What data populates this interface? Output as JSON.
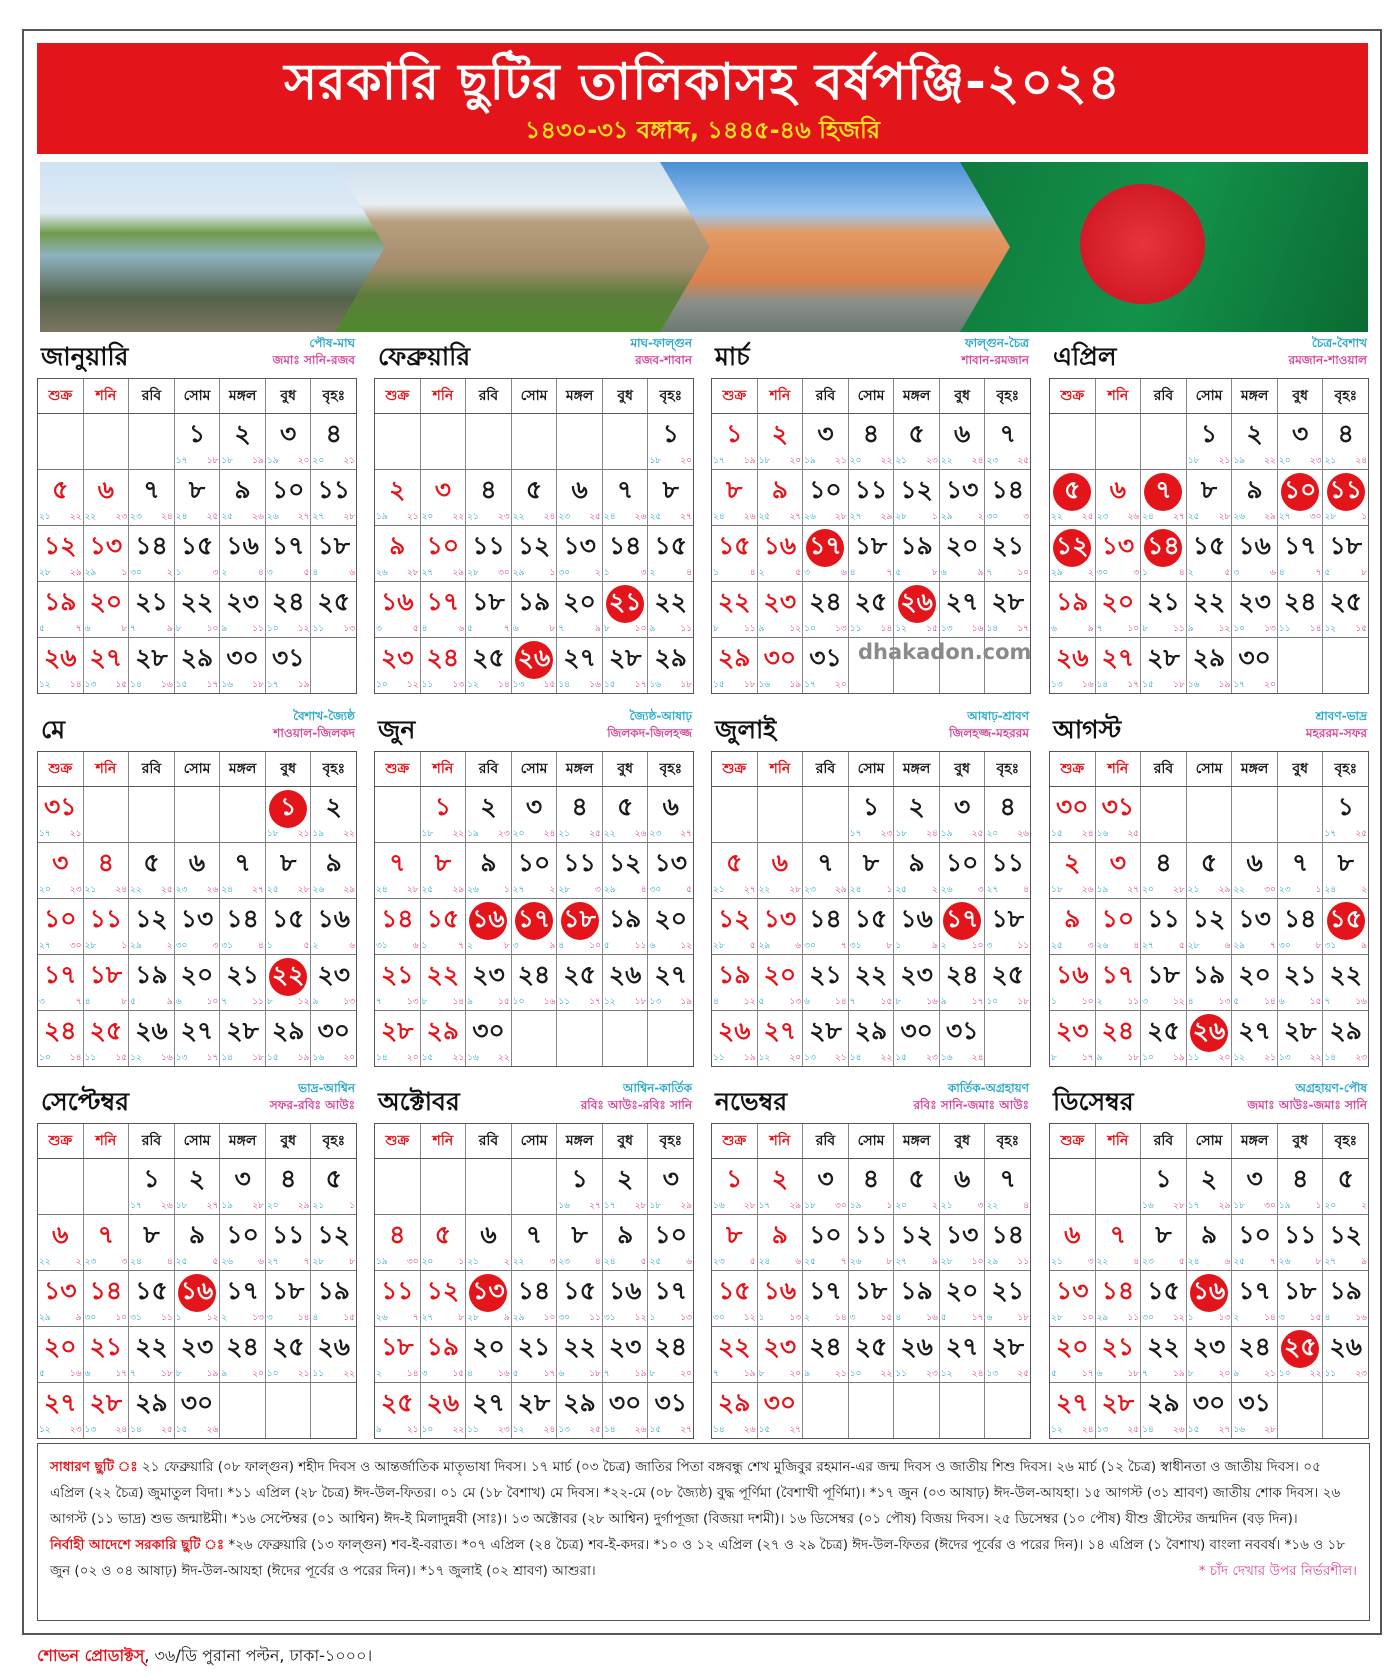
{
  "header": {
    "title": "সরকারি ছুটির তালিকাসহ বর্ষপঞ্জি-২০২৪",
    "subtitle": "১৪৩০-৩১ বঙ্গাব্দ, ১৪৪৫-৪৬ হিজরি"
  },
  "photos": [
    "river-boats-photo",
    "parliament-building-photo",
    "lalbagh-fort-photo",
    "bangladesh-flag-photo"
  ],
  "colors": {
    "accent_red": "#e3151b",
    "bengali_date": "#2aa9c9",
    "hijri_date": "#d5489a",
    "subtitle_yellow": "#ffe21a"
  },
  "calendar": {
    "year": 2024,
    "weekdays": [
      "শুক্র",
      "শনি",
      "রবি",
      "সোম",
      "মঙ্গল",
      "বুধ",
      "বৃহঃ"
    ],
    "months": [
      {
        "name": "জানুয়ারি",
        "bengali_months": "পৌষ-মাঘ",
        "hijri_months": "জমাঃ সানি-রজব",
        "holidays": [],
        "bn": [
          17,
          18,
          19,
          20,
          21,
          22,
          23,
          24,
          25,
          26,
          27,
          28,
          29,
          30,
          1,
          2,
          3,
          4,
          5,
          6,
          7,
          8,
          9,
          10,
          11,
          12,
          13,
          14,
          15,
          16,
          17
        ],
        "hj": [
          18,
          19,
          20,
          21,
          22,
          23,
          24,
          25,
          26,
          27,
          28,
          29,
          1,
          2,
          3,
          4,
          5,
          6,
          7,
          8,
          9,
          10,
          11,
          12,
          13,
          14,
          15,
          16,
          17,
          18,
          19
        ]
      },
      {
        "name": "ফেব্রুয়ারি",
        "bengali_months": "মাঘ-ফাল্গুন",
        "hijri_months": "রজব-শাবান",
        "holidays": [
          21,
          26
        ],
        "bn": [
          18,
          19,
          20,
          21,
          22,
          23,
          24,
          25,
          26,
          27,
          28,
          29,
          30,
          1,
          2,
          3,
          4,
          5,
          6,
          7,
          8,
          9,
          10,
          11,
          12,
          13,
          14,
          15,
          16
        ],
        "hj": [
          20,
          21,
          22,
          23,
          24,
          25,
          26,
          27,
          28,
          29,
          30,
          1,
          2,
          3,
          4,
          5,
          6,
          7,
          8,
          9,
          10,
          11,
          12,
          13,
          14,
          15,
          16,
          17,
          18
        ]
      },
      {
        "name": "মার্চ",
        "bengali_months": "ফাল্গুন-চৈত্র",
        "hijri_months": "শাবান-রমজান",
        "holidays": [
          17,
          26
        ],
        "bn": [
          17,
          18,
          19,
          20,
          21,
          22,
          23,
          24,
          25,
          26,
          27,
          28,
          29,
          30,
          1,
          2,
          3,
          4,
          5,
          6,
          7,
          8,
          9,
          10,
          11,
          12,
          13,
          14,
          15,
          16,
          17
        ],
        "hj": [
          19,
          20,
          21,
          22,
          23,
          24,
          25,
          26,
          27,
          28,
          29,
          1,
          2,
          3,
          4,
          5,
          6,
          7,
          8,
          9,
          10,
          11,
          12,
          13,
          14,
          15,
          16,
          17,
          18,
          19,
          20
        ]
      },
      {
        "name": "এপ্রিল",
        "bengali_months": "চৈত্র-বৈশাখ",
        "hijri_months": "রমজান-শাওয়াল",
        "holidays": [
          5,
          7,
          10,
          11,
          12,
          14
        ],
        "bn": [
          18,
          19,
          20,
          21,
          22,
          23,
          24,
          25,
          26,
          27,
          28,
          29,
          30,
          1,
          2,
          3,
          4,
          5,
          6,
          7,
          8,
          9,
          10,
          11,
          12,
          13,
          14,
          15,
          16,
          17
        ],
        "hj": [
          21,
          22,
          23,
          24,
          25,
          26,
          27,
          28,
          29,
          30,
          1,
          2,
          3,
          4,
          5,
          6,
          7,
          8,
          9,
          10,
          11,
          12,
          13,
          14,
          15,
          16,
          17,
          18,
          19,
          20
        ]
      },
      {
        "name": "মে",
        "bengali_months": "বৈশাখ-জ্যৈষ্ঠ",
        "hijri_months": "শাওয়াল-জিলকদ",
        "holidays": [
          1,
          22
        ],
        "bn": [
          18,
          19,
          20,
          21,
          22,
          23,
          24,
          25,
          26,
          27,
          28,
          29,
          30,
          31,
          1,
          2,
          3,
          4,
          5,
          6,
          7,
          8,
          9,
          10,
          11,
          12,
          13,
          14,
          15,
          16,
          17
        ],
        "hj": [
          21,
          22,
          23,
          24,
          25,
          26,
          27,
          28,
          29,
          30,
          1,
          2,
          3,
          4,
          5,
          6,
          7,
          8,
          9,
          10,
          11,
          12,
          13,
          14,
          15,
          16,
          17,
          18,
          19,
          20,
          21
        ]
      },
      {
        "name": "জুন",
        "bengali_months": "জ্যৈষ্ঠ-আষাঢ়",
        "hijri_months": "জিলকদ-জিলহজ্জ",
        "holidays": [
          16,
          17,
          18
        ],
        "bn": [
          18,
          19,
          20,
          21,
          22,
          23,
          24,
          25,
          26,
          27,
          28,
          29,
          30,
          31,
          1,
          2,
          3,
          4,
          5,
          6,
          7,
          8,
          9,
          10,
          11,
          12,
          13,
          14,
          15,
          16
        ],
        "hj": [
          22,
          23,
          24,
          25,
          26,
          27,
          28,
          29,
          1,
          2,
          3,
          4,
          5,
          6,
          7,
          8,
          9,
          10,
          11,
          12,
          13,
          14,
          15,
          16,
          17,
          18,
          19,
          20,
          21,
          22
        ]
      },
      {
        "name": "জুলাই",
        "bengali_months": "আষাঢ়-শ্রাবণ",
        "hijri_months": "জিলহজ্জ-মহররম",
        "holidays": [
          17
        ],
        "bn": [
          17,
          18,
          19,
          20,
          21,
          22,
          23,
          24,
          25,
          26,
          27,
          28,
          29,
          30,
          31,
          1,
          2,
          3,
          4,
          5,
          6,
          7,
          8,
          9,
          10,
          11,
          12,
          13,
          14,
          15,
          16
        ],
        "hj": [
          23,
          24,
          25,
          26,
          27,
          28,
          29,
          1,
          2,
          3,
          4,
          5,
          6,
          7,
          8,
          9,
          10,
          11,
          12,
          13,
          14,
          15,
          16,
          17,
          18,
          19,
          20,
          21,
          22,
          23,
          24
        ]
      },
      {
        "name": "আগস্ট",
        "bengali_months": "শ্রাবণ-ভাদ্র",
        "hijri_months": "মহররম-সফর",
        "holidays": [
          15,
          26
        ],
        "bn": [
          17,
          18,
          19,
          20,
          21,
          22,
          23,
          24,
          25,
          26,
          27,
          28,
          29,
          30,
          31,
          1,
          2,
          3,
          4,
          5,
          6,
          7,
          8,
          9,
          10,
          11,
          12,
          13,
          14,
          15,
          16
        ],
        "hj": [
          25,
          26,
          27,
          28,
          29,
          30,
          1,
          2,
          3,
          4,
          5,
          6,
          7,
          8,
          9,
          10,
          11,
          12,
          13,
          14,
          15,
          16,
          17,
          18,
          19,
          20,
          21,
          22,
          23,
          24,
          25
        ]
      },
      {
        "name": "সেপ্টেম্বর",
        "bengali_months": "ভাদ্র-আশ্বিন",
        "hijri_months": "সফর-রবিঃ আউঃ",
        "holidays": [
          16
        ],
        "bn": [
          17,
          18,
          19,
          20,
          21,
          22,
          23,
          24,
          25,
          26,
          27,
          28,
          29,
          30,
          31,
          1,
          2,
          3,
          4,
          5,
          6,
          7,
          8,
          9,
          10,
          11,
          12,
          13,
          14,
          15
        ],
        "hj": [
          26,
          27,
          28,
          29,
          1,
          2,
          3,
          4,
          5,
          6,
          7,
          8,
          9,
          10,
          11,
          12,
          13,
          14,
          15,
          16,
          17,
          18,
          19,
          20,
          21,
          22,
          23,
          24,
          25,
          26
        ]
      },
      {
        "name": "অক্টোবর",
        "bengali_months": "আশ্বিন-কার্তিক",
        "hijri_months": "রবিঃ আউঃ-রবিঃ সানি",
        "holidays": [
          13
        ],
        "bn": [
          16,
          17,
          18,
          19,
          20,
          21,
          22,
          23,
          24,
          25,
          26,
          27,
          28,
          29,
          30,
          31,
          1,
          2,
          3,
          4,
          5,
          6,
          7,
          8,
          9,
          10,
          11,
          12,
          13,
          14,
          15
        ],
        "hj": [
          27,
          28,
          29,
          30,
          1,
          2,
          3,
          4,
          5,
          6,
          7,
          8,
          9,
          10,
          11,
          12,
          13,
          14,
          15,
          16,
          17,
          18,
          19,
          20,
          21,
          22,
          23,
          24,
          25,
          26,
          27
        ]
      },
      {
        "name": "নভেম্বর",
        "bengali_months": "কার্তিক-অগ্রহায়ণ",
        "hijri_months": "রবিঃ সানি-জমাঃ আউঃ",
        "holidays": [],
        "bn": [
          16,
          17,
          18,
          19,
          20,
          21,
          22,
          23,
          24,
          25,
          26,
          27,
          28,
          29,
          30,
          1,
          2,
          3,
          4,
          5,
          6,
          7,
          8,
          9,
          10,
          11,
          12,
          13,
          14,
          15
        ],
        "hj": [
          28,
          29,
          30,
          1,
          2,
          3,
          4,
          5,
          6,
          7,
          8,
          9,
          10,
          11,
          12,
          13,
          14,
          15,
          16,
          17,
          18,
          19,
          20,
          21,
          22,
          23,
          24,
          25,
          26,
          27
        ]
      },
      {
        "name": "ডিসেম্বর",
        "bengali_months": "অগ্রহায়ণ-পৌষ",
        "hijri_months": "জমাঃ আউঃ-জমাঃ সানি",
        "holidays": [
          16,
          25
        ],
        "bn": [
          16,
          17,
          18,
          19,
          20,
          21,
          22,
          23,
          24,
          25,
          26,
          27,
          28,
          29,
          30,
          1,
          2,
          3,
          4,
          5,
          6,
          7,
          8,
          9,
          10,
          11,
          12,
          13,
          14,
          15,
          16
        ],
        "hj": [
          28,
          29,
          30,
          1,
          2,
          3,
          4,
          5,
          6,
          7,
          8,
          9,
          10,
          11,
          12,
          13,
          14,
          15,
          16,
          17,
          18,
          19,
          20,
          21,
          22,
          23,
          24,
          25,
          26,
          27,
          28
        ]
      }
    ]
  },
  "watermark": "dhakadon.com",
  "notes": {
    "general_label": "সাধারণ ছুটি ঃ",
    "general_text": "২১ ফেব্রুয়ারি (০৮ ফাল্গুন) শহীদ দিবস ও আন্তর্জাতিক মাতৃভাষা দিবস। ১৭ মার্চ (০৩ চৈত্র) জাতির পিতা বঙ্গবন্ধু শেখ মুজিবুর রহমান-এর জন্ম দিবস ও জাতীয় শিশু দিবস। ২৬ মার্চ (১২ চৈত্র) স্বাধীনতা ও জাতীয় দিবস। ০৫ এপ্রিল (২২ চৈত্র) জুমাতুল বিদা। *১১ এপ্রিল (২৮ চৈত্র) ঈদ-উল-ফিতর। ০১ মে (১৮ বৈশাখ) মে দিবস। *২২-মে (০৮ জ্যৈষ্ঠ) বুদ্ধ পূর্ণিমা (বৈশাখী পূর্ণিমা)। *১৭ জুন (০৩ আষাঢ়) ঈদ-উল-আযহা। ১৫ আগস্ট (৩১ শ্রাবণ) জাতীয় শোক দিবস। ২৬ আগস্ট (১১ ভাদ্র) শুভ জন্মাষ্টমী। *১৬ সেপ্টেম্বর (০১ আশ্বিন) ঈদ-ই মিলাদুন্নবী (সাঃ)। ১৩ অক্টোবর (২৮ আশ্বিন) দুর্গাপূজা (বিজয়া দশমী)। ১৬ ডিসেম্বর (০১ পৌষ) বিজয় দিবস। ২৫ ডিসেম্বর (১০ পৌষ) যীশু খ্রীস্টের জন্মদিন (বড় দিন)।",
    "executive_label": "নির্বাহী আদেশে সরকারি ছুটি ঃ",
    "executive_text": "*২৬ ফেব্রুয়ারি (১৩ ফাল্গুন) শব-ই-বরাত। *০৭ এপ্রিল (২৪ চৈত্র) শব-ই-কদর। *১০ ও ১২ এপ্রিল (২৭ ও ২৯ চৈত্র) ঈদ-উল-ফিতর (ঈদের পূর্বের ও পরের দিন)। ১৪ এপ্রিল (১ বৈশাখ) বাংলা নববর্ষ। *১৬ ও ১৮ জুন (০২ ও ০৪ আষাঢ়) ঈদ-উল-আযহা (ঈদের পূর্বের ও পরের দিন)। *১৭ জুলাই (০২ শ্রাবণ) আশুরা।",
    "footnote": "* চাঁদ দেখার উপর নির্ভরশীল।"
  },
  "footer": {
    "company": "শোভন প্রোডাক্টস্",
    "address": ", ৩৬/ডি পুরানা পল্টন, ঢাকা-১০০০।"
  }
}
